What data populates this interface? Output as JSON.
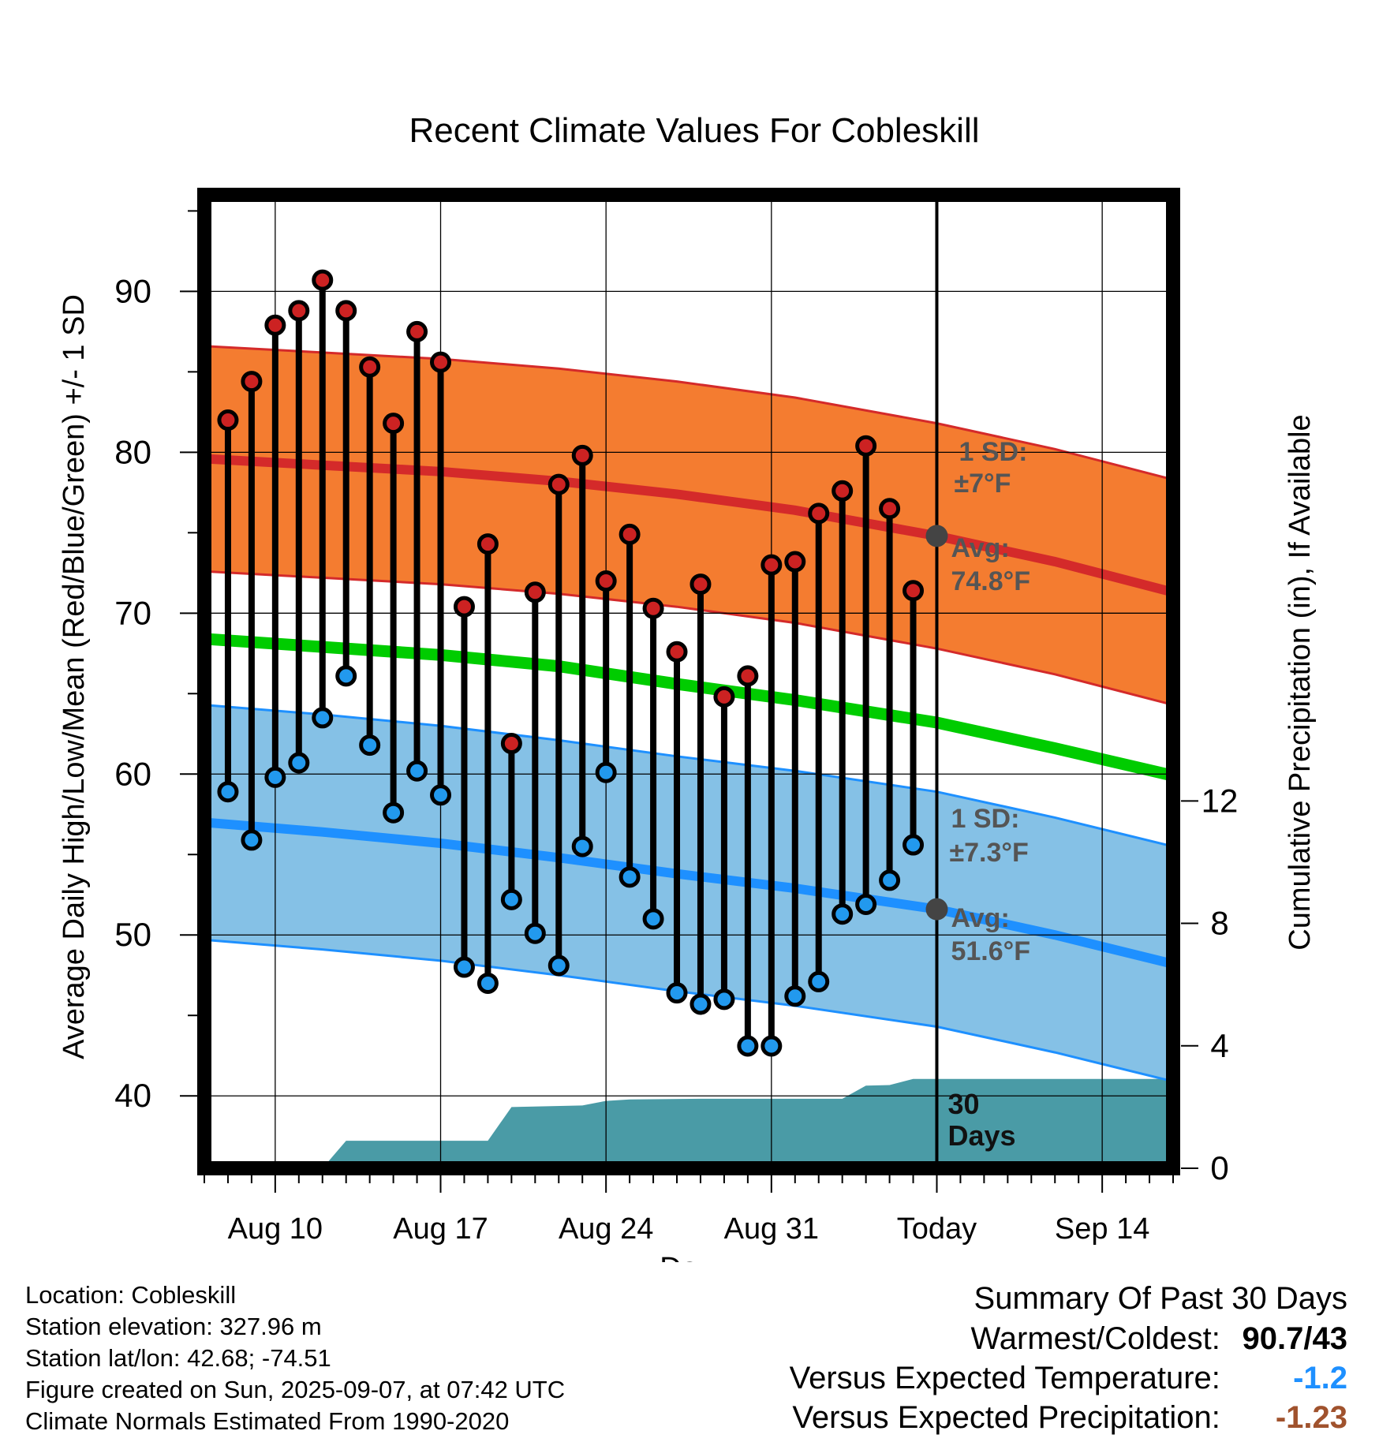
{
  "title": "Recent Climate Values For Cobleskill",
  "chart_data": {
    "type": "line",
    "title": "Recent Climate Values For Cobleskill",
    "xlabel": "Day",
    "ylabel_left": "Average Daily High/Low/Mean (Red/Blue/Green) +/- 1 SD",
    "ylabel_right": "Cumulative Precipitation (in), If Available",
    "y_left_range": [
      35.5,
      96
    ],
    "y_left_ticks": [
      40,
      50,
      60,
      70,
      80,
      90
    ],
    "y_right_range": [
      0,
      31.8
    ],
    "y_right_ticks": [
      0,
      4,
      8,
      12
    ],
    "x_range": [
      "2025-08-07",
      "2025-09-17"
    ],
    "x_ticks": [
      {
        "date": "2025-08-10",
        "label": "Aug 10"
      },
      {
        "date": "2025-08-17",
        "label": "Aug 17"
      },
      {
        "date": "2025-08-24",
        "label": "Aug 24"
      },
      {
        "date": "2025-08-31",
        "label": "Aug 31"
      },
      {
        "date": "2025-09-07",
        "label": "Today"
      },
      {
        "date": "2025-09-14",
        "label": "Sep 14"
      }
    ],
    "today": "2025-09-07",
    "period_label": [
      "30",
      "Days"
    ],
    "colors": {
      "high_band": "#f47c30",
      "high_mean": "#d42a2a",
      "mean": "#00cc00",
      "low_band": "#85c1e6",
      "low_mean": "#1e90ff",
      "low_band_edge": "#1e90ff",
      "precip": "#4a9ba6",
      "high_dot": "#cc2222",
      "low_dot": "#2299ee",
      "avg_marker": "#444444",
      "annotation": "#555555"
    },
    "observed": {
      "dates": [
        "2025-08-08",
        "2025-08-09",
        "2025-08-10",
        "2025-08-11",
        "2025-08-12",
        "2025-08-13",
        "2025-08-14",
        "2025-08-15",
        "2025-08-16",
        "2025-08-17",
        "2025-08-18",
        "2025-08-19",
        "2025-08-20",
        "2025-08-21",
        "2025-08-22",
        "2025-08-23",
        "2025-08-24",
        "2025-08-25",
        "2025-08-26",
        "2025-08-27",
        "2025-08-28",
        "2025-08-29",
        "2025-08-30",
        "2025-08-31",
        "2025-09-01",
        "2025-09-02",
        "2025-09-03",
        "2025-09-04",
        "2025-09-05",
        "2025-09-06"
      ],
      "high": [
        82.0,
        84.4,
        87.9,
        88.8,
        90.7,
        88.8,
        85.3,
        81.8,
        87.5,
        85.6,
        70.4,
        74.3,
        61.9,
        71.3,
        78.0,
        79.8,
        72.0,
        74.9,
        70.3,
        67.6,
        71.8,
        64.8,
        66.1,
        73.0,
        73.2,
        76.2,
        77.6,
        80.4,
        76.5,
        71.4
      ],
      "low": [
        58.9,
        55.9,
        59.8,
        60.7,
        63.5,
        66.1,
        61.8,
        57.6,
        60.2,
        58.7,
        48.0,
        47.0,
        52.2,
        50.1,
        48.1,
        55.5,
        60.1,
        53.6,
        51.0,
        46.4,
        45.7,
        46.0,
        43.1,
        43.1,
        46.2,
        47.1,
        51.3,
        51.9,
        53.4,
        55.6
      ]
    },
    "normals": {
      "dates": [
        "2025-08-07",
        "2025-08-12",
        "2025-08-17",
        "2025-08-22",
        "2025-08-27",
        "2025-09-01",
        "2025-09-07",
        "2025-09-12",
        "2025-09-17"
      ],
      "high_mean": [
        79.6,
        79.2,
        78.8,
        78.2,
        77.4,
        76.4,
        74.8,
        73.2,
        71.3
      ],
      "high_sd": 7.0,
      "low_mean": [
        57.0,
        56.4,
        55.7,
        54.8,
        53.8,
        52.9,
        51.6,
        50.0,
        48.2
      ],
      "low_sd": 7.3,
      "mean": [
        68.4,
        67.9,
        67.4,
        66.7,
        65.6,
        64.6,
        63.2,
        61.6,
        59.9
      ]
    },
    "precip_cumulative": {
      "dates": [
        "2025-08-07",
        "2025-08-11",
        "2025-08-12",
        "2025-08-13",
        "2025-08-19",
        "2025-08-20",
        "2025-08-23",
        "2025-08-24",
        "2025-08-25",
        "2025-08-28",
        "2025-09-03",
        "2025-09-04",
        "2025-09-05",
        "2025-09-06",
        "2025-09-17"
      ],
      "values": [
        0,
        0,
        0,
        0.9,
        0.9,
        2.0,
        2.05,
        2.2,
        2.25,
        2.27,
        2.27,
        2.7,
        2.72,
        2.92,
        2.92
      ]
    },
    "annotations": {
      "high": {
        "sd_label": "1 SD:",
        "sd_value": "±7°F",
        "avg_label": "Avg:",
        "avg_value": "74.8°F",
        "avg": 74.8
      },
      "low": {
        "sd_label": "1 SD:",
        "sd_value": "±7.3°F",
        "avg_label": "Avg:",
        "avg_value": "51.6°F",
        "avg": 51.6
      }
    }
  },
  "info": {
    "location": "Location: Cobleskill",
    "elevation": "Station elevation: 327.96 m",
    "latlon": "Station lat/lon: 42.68; -74.51",
    "created": "Figure created on Sun, 2025-09-07, at 07:42 UTC",
    "normals": "Climate Normals Estimated From 1990-2020"
  },
  "summary": {
    "title": "Summary Of Past 30 Days",
    "warmest_coldest_label": "Warmest/Coldest:",
    "warmest_coldest_value": "90.7/43",
    "temp_label": "Versus Expected Temperature:",
    "temp_value": "-1.2",
    "temp_color": "#1e90ff",
    "precip_label": "Versus Expected Precipitation:",
    "precip_value": "-1.23",
    "precip_color": "#a0522d"
  }
}
